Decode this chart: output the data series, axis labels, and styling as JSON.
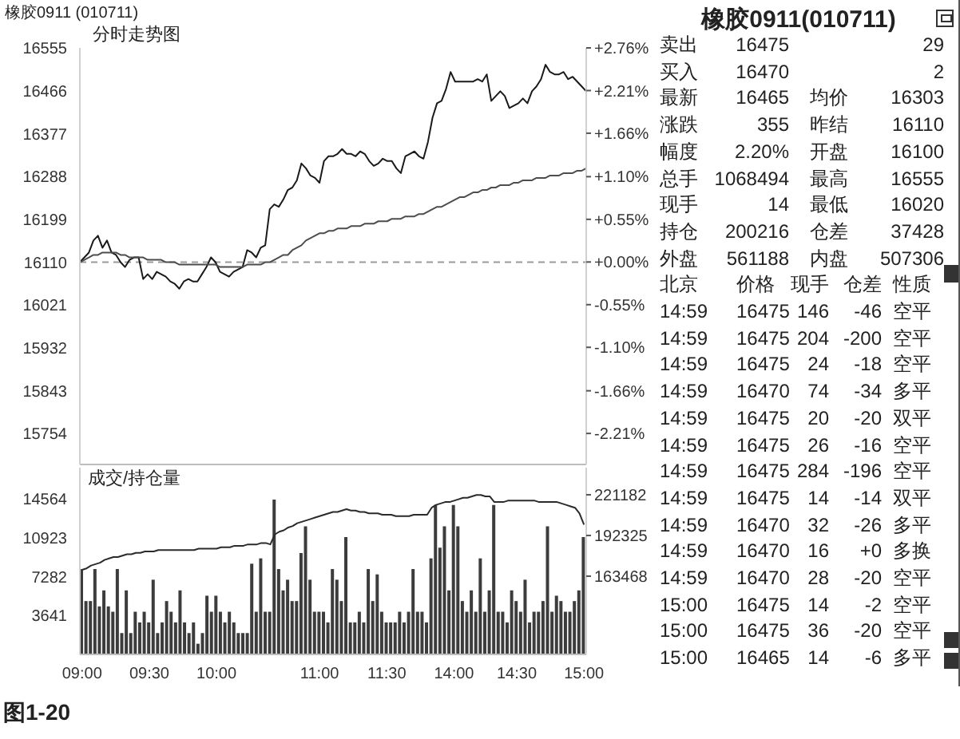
{
  "chart_data": [
    {
      "type": "line",
      "title": "橡胶0911 (010711)",
      "subtitle": "分时走势图",
      "categories": [
        null,
        null,
        null,
        null,
        null,
        null,
        null,
        null,
        null,
        null,
        null,
        null,
        null,
        null,
        null,
        null,
        null,
        null,
        null,
        null,
        null,
        null,
        null,
        null,
        null,
        null,
        null,
        null,
        null,
        null,
        null,
        null,
        null,
        null,
        null,
        null,
        null,
        null,
        null,
        null,
        null,
        null,
        null,
        null,
        null,
        null,
        null,
        null,
        null,
        null,
        null,
        null,
        null,
        null,
        null,
        null,
        null,
        null,
        null,
        null,
        null,
        null,
        null,
        null,
        null,
        null,
        null,
        null,
        null,
        null,
        null,
        null,
        null,
        null,
        null,
        null,
        null,
        null,
        null,
        null,
        null,
        null,
        null,
        null,
        null,
        null,
        null,
        null,
        null,
        null,
        null,
        null,
        null,
        null,
        null,
        null,
        null,
        null,
        null,
        null,
        null,
        null,
        null,
        null,
        null,
        null,
        null,
        null,
        null,
        null,
        null,
        null,
        null
      ],
      "ylim": [
        15690,
        16555
      ],
      "yticks": [
        16555,
        16466,
        16377,
        16288,
        16199,
        16110,
        16021,
        15932,
        15843,
        15754
      ],
      "y2lim": [
        -2.61,
        2.76
      ],
      "y2ticks": [
        {
          "value": 2.76,
          "label": "+2.76%"
        },
        {
          "value": 2.21,
          "label": "+2.21%"
        },
        {
          "value": 1.66,
          "label": "+1.66%"
        },
        {
          "value": 1.1,
          "label": "+1.10%"
        },
        {
          "value": 0.55,
          "label": "+0.55%"
        },
        {
          "value": 0,
          "label": "+0.00%"
        },
        {
          "value": -0.55,
          "label": "-0.55%"
        },
        {
          "value": -1.1,
          "label": "-1.10%"
        },
        {
          "value": -1.66,
          "label": "-1.66%"
        },
        {
          "value": -2.21,
          "label": "-2.21%"
        }
      ],
      "tick_labels": "y",
      "ref_lines": [
        {
          "axis": "y",
          "value": 16110,
          "color": "#9a9a9a",
          "line_style": "dashed"
        }
      ],
      "series": [
        {
          "color": "#1a1a1a",
          "values": [
            16110,
            16120,
            16130,
            16155,
            16165,
            16140,
            16155,
            16130,
            16125,
            16110,
            16100,
            16115,
            16120,
            16120,
            16075,
            16085,
            16075,
            16090,
            16085,
            16080,
            16070,
            16065,
            16055,
            16070,
            16075,
            16070,
            16070,
            16085,
            16100,
            16120,
            16110,
            16090,
            16085,
            16080,
            16090,
            16095,
            16100,
            16135,
            16130,
            16120,
            16140,
            16145,
            16220,
            16230,
            16225,
            16240,
            16260,
            16265,
            16280,
            16315,
            16305,
            16290,
            16285,
            16275,
            16320,
            16330,
            16330,
            16335,
            16345,
            16335,
            16335,
            16330,
            16340,
            16335,
            16320,
            16310,
            16315,
            16325,
            16320,
            16320,
            16305,
            16295,
            16330,
            16335,
            16340,
            16330,
            16325,
            16360,
            16410,
            16440,
            16445,
            16470,
            16505,
            16485,
            16485,
            16485,
            16485,
            16485,
            16490,
            16485,
            16500,
            16445,
            16455,
            16465,
            16455,
            16430,
            16435,
            16440,
            16450,
            16440,
            16465,
            16475,
            16490,
            16520,
            16505,
            16500,
            16500,
            16505,
            16490,
            16495,
            16485,
            16475,
            16465
          ]
        },
        {
          "color": "#4d4d4d",
          "values": [
            16110,
            16115,
            16120,
            16125,
            16125,
            16130,
            16130,
            16130,
            16130,
            16125,
            16125,
            16120,
            16120,
            16120,
            16120,
            16115,
            16115,
            16115,
            16115,
            16110,
            16110,
            16110,
            16105,
            16105,
            16105,
            16105,
            16105,
            16105,
            16105,
            16105,
            16105,
            16100,
            16100,
            16100,
            16100,
            16100,
            16100,
            16105,
            16105,
            16105,
            16105,
            16110,
            16110,
            16115,
            16120,
            16125,
            16125,
            16135,
            16140,
            16145,
            16155,
            16160,
            16165,
            16170,
            16170,
            16175,
            16175,
            16180,
            16180,
            16180,
            16185,
            16185,
            16185,
            16190,
            16190,
            16190,
            16195,
            16195,
            16195,
            16200,
            16200,
            16200,
            16205,
            16205,
            16205,
            16210,
            16210,
            16215,
            16220,
            16225,
            16225,
            16230,
            16235,
            16240,
            16245,
            16245,
            16250,
            16255,
            16255,
            16260,
            16260,
            16265,
            16265,
            16270,
            16270,
            16270,
            16275,
            16275,
            16280,
            16280,
            16280,
            16285,
            16285,
            16285,
            16290,
            16290,
            16290,
            16295,
            16295,
            16295,
            16300,
            16300,
            16305
          ]
        }
      ]
    },
    {
      "type": "bar",
      "title": "成交/持仓量",
      "annotations": [
        "图1-20"
      ],
      "categories": [
        "09:00",
        null,
        null,
        null,
        null,
        null,
        null,
        null,
        null,
        null,
        null,
        null,
        null,
        null,
        null,
        "09:30",
        null,
        null,
        null,
        null,
        null,
        null,
        null,
        null,
        null,
        null,
        null,
        null,
        null,
        null,
        "10:00",
        null,
        null,
        null,
        null,
        null,
        null,
        null,
        null,
        null,
        null,
        null,
        null,
        null,
        null,
        null,
        null,
        null,
        null,
        null,
        null,
        null,
        null,
        "11:00",
        null,
        null,
        null,
        null,
        null,
        null,
        null,
        null,
        null,
        null,
        null,
        null,
        null,
        null,
        "11:30",
        null,
        null,
        null,
        null,
        null,
        null,
        null,
        null,
        null,
        null,
        null,
        null,
        null,
        null,
        "14:00",
        null,
        null,
        null,
        null,
        null,
        null,
        null,
        null,
        null,
        null,
        null,
        null,
        null,
        "14:30",
        null,
        null,
        null,
        null,
        null,
        null,
        null,
        null,
        null,
        null,
        null,
        null,
        null,
        null,
        "15:00"
      ],
      "ylim": [
        0,
        17500
      ],
      "yticks": [
        14564,
        10923,
        7282,
        3641
      ],
      "y2lim": [
        108000,
        240400
      ],
      "y2ticks": [
        221182,
        192325,
        163468
      ],
      "series": [
        {
          "type": "bar",
          "color": "#3c3c3c",
          "values": [
            8000,
            5000,
            5000,
            8000,
            4500,
            6000,
            4500,
            4000,
            8000,
            2000,
            6000,
            2000,
            4000,
            3000,
            4000,
            3000,
            7000,
            2000,
            3000,
            5000,
            4000,
            3000,
            6000,
            3000,
            2000,
            3000,
            1000,
            2000,
            5500,
            4000,
            5500,
            4000,
            3000,
            4000,
            3000,
            2000,
            2000,
            2000,
            8500,
            4000,
            9000,
            4000,
            4000,
            14500,
            8000,
            6000,
            7000,
            5000,
            5000,
            9500,
            12000,
            7000,
            4000,
            4000,
            4000,
            3000,
            8000,
            7000,
            5000,
            11000,
            3000,
            3000,
            4000,
            3000,
            8000,
            5000,
            7500,
            4000,
            3000,
            3000,
            3000,
            4000,
            3000,
            4000,
            8000,
            4000,
            4000,
            3000,
            9000,
            14000,
            10000,
            12000,
            6000,
            14000,
            12000,
            5000,
            4000,
            6000,
            4000,
            9000,
            4000,
            6000,
            14000,
            4000,
            4000,
            3000,
            6000,
            5000,
            4000,
            7000,
            3000,
            4000,
            4000,
            5000,
            12000,
            4000,
            5500,
            5000,
            4000,
            4000,
            5000,
            6000,
            11000
          ]
        },
        {
          "type": "line",
          "axis": "y2",
          "color": "#2b2b2b",
          "values": [
            168000,
            169000,
            171000,
            172000,
            173000,
            175000,
            176000,
            177000,
            177000,
            178000,
            179000,
            179000,
            180000,
            180000,
            181000,
            181000,
            181000,
            182000,
            182000,
            182000,
            182000,
            182000,
            182000,
            182000,
            182000,
            182000,
            183000,
            183000,
            183000,
            183000,
            183000,
            184000,
            184000,
            184000,
            185000,
            185000,
            185000,
            186000,
            186000,
            186000,
            187000,
            187000,
            186000,
            193000,
            195000,
            196000,
            198000,
            199000,
            201000,
            202000,
            203000,
            204000,
            205000,
            206000,
            207000,
            208000,
            209000,
            209000,
            210000,
            211000,
            210000,
            210000,
            209000,
            209000,
            208000,
            208000,
            208000,
            207000,
            207000,
            207000,
            206000,
            206000,
            206000,
            206000,
            207000,
            207000,
            207000,
            207000,
            212000,
            214000,
            215000,
            216000,
            216000,
            217000,
            218000,
            219000,
            219000,
            220000,
            221000,
            221000,
            220000,
            220000,
            216000,
            216000,
            216000,
            217000,
            217000,
            217000,
            217000,
            217000,
            217000,
            217000,
            216000,
            216000,
            216000,
            216000,
            216000,
            215000,
            214000,
            213000,
            212000,
            208000,
            200000
          ]
        }
      ]
    },
    {
      "type": "other",
      "title": "橡胶0911(010711)",
      "annotations": [
        "卖出",
        "16475",
        "29",
        "买入",
        "16470",
        "2",
        "最新",
        "16465",
        "均价",
        "16303",
        "涨跌",
        "355",
        "昨结",
        "16110",
        "幅度",
        "2.20%",
        "开盘",
        "16100",
        "总手",
        "1068494",
        "最高",
        "16555",
        "现手",
        "14",
        "最低",
        "16020",
        "持仓",
        "200216",
        "仓差",
        "37428",
        "外盘",
        "561188",
        "内盘",
        "507306",
        "北京",
        "价格",
        "现手",
        "仓差",
        "性质",
        "14:59",
        "16475",
        "146",
        "-46",
        "空平",
        "14:59",
        "16475",
        "204",
        "-200",
        "空平",
        "14:59",
        "16475",
        "24",
        "-18",
        "空平",
        "14:59",
        "16470",
        "74",
        "-34",
        "多平",
        "14:59",
        "16475",
        "20",
        "-20",
        "双平",
        "14:59",
        "16475",
        "26",
        "-16",
        "空平",
        "14:59",
        "16475",
        "284",
        "-196",
        "空平",
        "14:59",
        "16475",
        "14",
        "-14",
        "双平",
        "14:59",
        "16470",
        "32",
        "-26",
        "多平",
        "14:59",
        "16470",
        "16",
        "+0",
        "多换",
        "14:59",
        "16470",
        "28",
        "-20",
        "空平",
        "15:00",
        "16475",
        "14",
        "-2",
        "空平",
        "15:00",
        "16475",
        "36",
        "-20",
        "空平",
        "15:00",
        "16465",
        "14",
        "-6",
        "多平"
      ]
    }
  ]
}
